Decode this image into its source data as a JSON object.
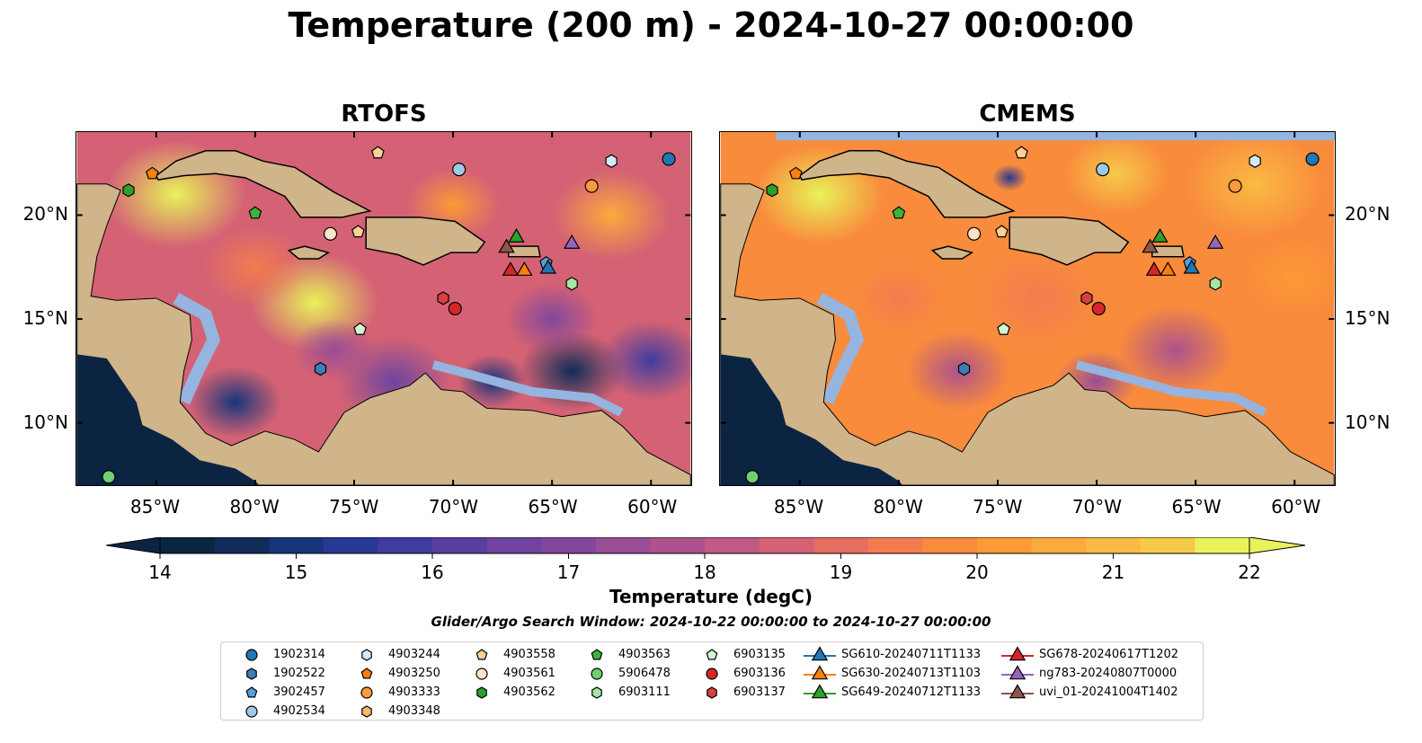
{
  "title": "Temperature (200 m) - 2024-10-27 00:00:00",
  "panels": [
    {
      "title": "RTOFS"
    },
    {
      "title": "CMEMS"
    }
  ],
  "colorbar": {
    "label": "Temperature (degC)",
    "ticks": [
      "14",
      "15",
      "16",
      "17",
      "18",
      "19",
      "20",
      "21",
      "22"
    ],
    "colors": [
      "#0a2442",
      "#0f2d58",
      "#17357a",
      "#283894",
      "#3f3c9f",
      "#583ea1",
      "#6e44a0",
      "#82479d",
      "#984d95",
      "#ad528d",
      "#c05983",
      "#d46274",
      "#e56d62",
      "#f27c4f",
      "#f98b3c",
      "#fb9a36",
      "#fbaa3c",
      "#f9bb43",
      "#f5ca49",
      "#e9f25a"
    ],
    "min": 14,
    "max": 22
  },
  "search_window": "Glider/Argo Search Window: 2024-10-22 00:00:00 to 2024-10-27 00:00:00",
  "axes": {
    "lon_ticks": [
      "85°W",
      "80°W",
      "75°W",
      "70°W",
      "65°W",
      "60°W"
    ],
    "lat_ticks": [
      "20°N",
      "15°N",
      "10°N"
    ],
    "lon_values": [
      -85,
      -80,
      -75,
      -70,
      -65,
      -60
    ],
    "lat_values": [
      20,
      15,
      10
    ],
    "lon_range": [
      -89,
      -58
    ],
    "lat_range": [
      7,
      24
    ]
  },
  "legend": [
    {
      "name": "1902314",
      "marker": "circle",
      "color": "#1f77b4"
    },
    {
      "name": "1902522",
      "marker": "hexagon",
      "color": "#3a7fb8"
    },
    {
      "name": "3902457",
      "marker": "pentagon",
      "color": "#5a9fd4"
    },
    {
      "name": "4902534",
      "marker": "circle",
      "color": "#9ecae9"
    },
    {
      "name": "4903244",
      "marker": "hexagon",
      "color": "#d6e8f7"
    },
    {
      "name": "4903250",
      "marker": "pentagon",
      "color": "#ff7f0e"
    },
    {
      "name": "4903333",
      "marker": "circle",
      "color": "#ff9a3c"
    },
    {
      "name": "4903348",
      "marker": "hexagon",
      "color": "#ffb86c"
    },
    {
      "name": "4903558",
      "marker": "pentagon",
      "color": "#ffcf99"
    },
    {
      "name": "4903561",
      "marker": "circle",
      "color": "#ffe3c6"
    },
    {
      "name": "4903562",
      "marker": "hexagon",
      "color": "#2ca02c"
    },
    {
      "name": "4903563",
      "marker": "pentagon",
      "color": "#3cb43c"
    },
    {
      "name": "5906478",
      "marker": "circle",
      "color": "#6fd06f"
    },
    {
      "name": "6903111",
      "marker": "hexagon",
      "color": "#a5e6a5"
    },
    {
      "name": "6903135",
      "marker": "pentagon",
      "color": "#d2f5d2"
    },
    {
      "name": "6903136",
      "marker": "circle",
      "color": "#d62728"
    },
    {
      "name": "6903137",
      "marker": "hexagon",
      "color": "#d84040"
    },
    {
      "name": "SG610-20240711T1133",
      "marker": "triangle-line",
      "color": "#1f77b4"
    },
    {
      "name": "SG630-20240713T1103",
      "marker": "triangle-line",
      "color": "#ff7f0e"
    },
    {
      "name": "SG649-20240712T1133",
      "marker": "triangle-line",
      "color": "#2ca02c"
    },
    {
      "name": "SG678-20240617T1202",
      "marker": "triangle-line",
      "color": "#d62728"
    },
    {
      "name": "ng783-20240807T0000",
      "marker": "triangle-line",
      "color": "#9467bd"
    },
    {
      "name": "uvi_01-20241004T1402",
      "marker": "triangle-line",
      "color": "#8c564b"
    }
  ],
  "chart_data": {
    "type": "heatmap",
    "description_units": "degC",
    "points": [
      {
        "id": "1902314",
        "lon": -59.1,
        "lat": 22.7,
        "marker": "circle",
        "color": "#1f77b4"
      },
      {
        "id": "1902522",
        "lon": -76.7,
        "lat": 12.6,
        "marker": "hexagon",
        "color": "#3a7fb8"
      },
      {
        "id": "3902457",
        "lon": -65.3,
        "lat": 17.7,
        "marker": "pentagon",
        "color": "#5a9fd4"
      },
      {
        "id": "4902534",
        "lon": -69.7,
        "lat": 22.2,
        "marker": "circle",
        "color": "#9ecae9"
      },
      {
        "id": "4903244",
        "lon": -62.0,
        "lat": 22.6,
        "marker": "hexagon",
        "color": "#d6e8f7"
      },
      {
        "id": "4903250",
        "lon": -85.2,
        "lat": 22.0,
        "marker": "pentagon",
        "color": "#ff7f0e"
      },
      {
        "id": "4903333",
        "lon": -63.0,
        "lat": 21.4,
        "marker": "circle",
        "color": "#ff9a3c"
      },
      {
        "id": "4903558",
        "lon": -73.8,
        "lat": 23.0,
        "marker": "pentagon",
        "color": "#ffcf99"
      },
      {
        "id": "4903558b",
        "lon": -74.8,
        "lat": 19.2,
        "marker": "pentagon",
        "color": "#ffcf99"
      },
      {
        "id": "4903561",
        "lon": -76.2,
        "lat": 19.1,
        "marker": "circle",
        "color": "#ffe3c6"
      },
      {
        "id": "4903562",
        "lon": -86.4,
        "lat": 21.2,
        "marker": "hexagon",
        "color": "#2ca02c"
      },
      {
        "id": "4903563",
        "lon": -80.0,
        "lat": 20.1,
        "marker": "pentagon",
        "color": "#3cb43c"
      },
      {
        "id": "5906478",
        "lon": -87.4,
        "lat": 7.4,
        "marker": "circle",
        "color": "#6fd06f"
      },
      {
        "id": "6903111",
        "lon": -64.0,
        "lat": 16.7,
        "marker": "hexagon",
        "color": "#a5e6a5"
      },
      {
        "id": "6903135",
        "lon": -74.7,
        "lat": 14.5,
        "marker": "pentagon",
        "color": "#d2f5d2"
      },
      {
        "id": "6903136",
        "lon": -69.9,
        "lat": 15.5,
        "marker": "circle",
        "color": "#d62728"
      },
      {
        "id": "6903137",
        "lon": -70.5,
        "lat": 16.0,
        "marker": "hexagon",
        "color": "#d84040"
      },
      {
        "id": "SG610",
        "lon": -65.2,
        "lat": 17.5,
        "marker": "triangle",
        "color": "#1f77b4"
      },
      {
        "id": "SG630",
        "lon": -66.4,
        "lat": 17.4,
        "marker": "triangle",
        "color": "#ff7f0e"
      },
      {
        "id": "SG649",
        "lon": -66.8,
        "lat": 19.0,
        "marker": "triangle",
        "color": "#2ca02c"
      },
      {
        "id": "SG678",
        "lon": -67.1,
        "lat": 17.4,
        "marker": "triangle",
        "color": "#d62728"
      },
      {
        "id": "ng783",
        "lon": -64.0,
        "lat": 18.7,
        "marker": "triangle",
        "color": "#9467bd"
      },
      {
        "id": "uvi_01",
        "lon": -67.3,
        "lat": 18.5,
        "marker": "triangle",
        "color": "#8c564b"
      }
    ]
  }
}
